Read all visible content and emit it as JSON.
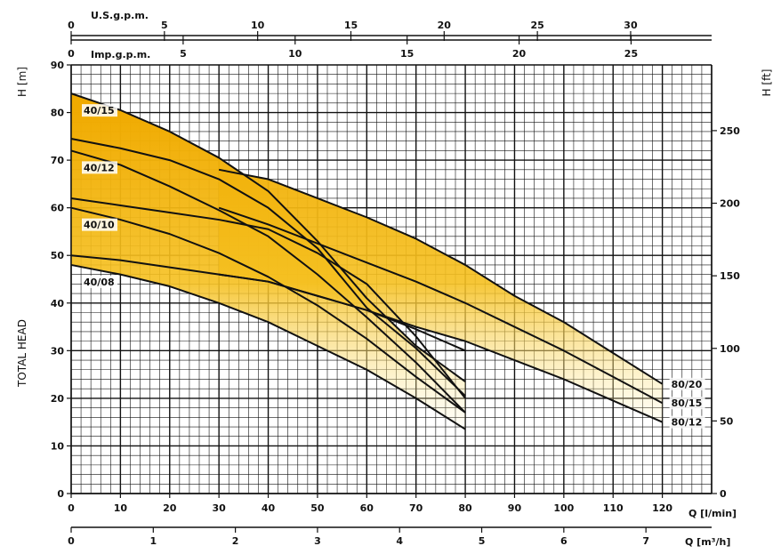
{
  "chart_data": {
    "type": "line",
    "left_axis_title": "TOTAL HEAD",
    "left_unit": "H [m]",
    "right_unit": "H [ft]",
    "bottom_unit_lmin": "Q [l/min]",
    "bottom_unit_m3h": "Q [m³/h]",
    "top_unit_us": "U.S.g.p.m.",
    "top_unit_imp": "Imp.g.p.m.",
    "xlim": [
      0,
      130
    ],
    "ylim": [
      0,
      90
    ],
    "y_ticks_m": [
      0,
      10,
      20,
      30,
      40,
      50,
      60,
      70,
      80,
      90
    ],
    "y_ticks_ft": [
      0,
      50,
      100,
      150,
      200,
      250
    ],
    "x_ticks_lmin": [
      0,
      10,
      20,
      30,
      40,
      50,
      60,
      70,
      80,
      90,
      100,
      110,
      120
    ],
    "x_ticks_m3h": [
      0,
      1,
      2,
      3,
      4,
      5,
      6,
      7
    ],
    "x_ticks_usgpm": [
      0,
      5,
      10,
      15,
      20,
      25,
      30
    ],
    "x_ticks_impgpm": [
      0,
      5,
      10,
      15,
      20,
      25
    ],
    "fill_color": "#f0b000",
    "series": [
      {
        "name": "40/15",
        "x": [
          0,
          10,
          20,
          30,
          40,
          50,
          60,
          70,
          80
        ],
        "y": [
          84,
          80.5,
          76,
          70.5,
          63.5,
          53,
          41,
          31,
          23.5
        ]
      },
      {
        "name": "",
        "x": [
          0,
          10,
          20,
          30,
          40,
          50,
          60,
          70,
          80
        ],
        "y": [
          74.5,
          72.5,
          70,
          66,
          60,
          51.5,
          39,
          30.5,
          20.5
        ]
      },
      {
        "name": "40/12",
        "x": [
          0,
          10,
          20,
          30,
          40,
          50,
          60,
          70,
          80
        ],
        "y": [
          72,
          69,
          64.5,
          59.5,
          54,
          46,
          37,
          27.5,
          17
        ]
      },
      {
        "name": "",
        "x": [
          0,
          10,
          20,
          30,
          40,
          50,
          60,
          70,
          80
        ],
        "y": [
          62,
          60.5,
          59,
          57.5,
          55.5,
          50.5,
          44,
          33,
          20
        ]
      },
      {
        "name": "40/10",
        "x": [
          0,
          10,
          20,
          30,
          40,
          50,
          60,
          70,
          80
        ],
        "y": [
          60,
          57.5,
          54.5,
          50.5,
          45.5,
          39.5,
          32.5,
          24.5,
          17
        ]
      },
      {
        "name": "",
        "x": [
          0,
          10,
          20,
          30,
          40,
          50,
          60,
          70,
          80
        ],
        "y": [
          50,
          49,
          47.5,
          46,
          44.5,
          41.5,
          38.5,
          34.5,
          30
        ]
      },
      {
        "name": "40/08",
        "x": [
          0,
          10,
          20,
          30,
          40,
          50,
          60,
          70,
          80
        ],
        "y": [
          48,
          46,
          43.5,
          40,
          36,
          31,
          26,
          20,
          13.5
        ]
      },
      {
        "name": "80/20",
        "x": [
          30,
          40,
          50,
          60,
          70,
          80,
          90,
          100,
          110,
          120
        ],
        "y": [
          68,
          66,
          62,
          58,
          53.5,
          48,
          41.5,
          36,
          29.5,
          23
        ]
      },
      {
        "name": "80/15",
        "x": [
          30,
          40,
          50,
          60,
          70,
          80,
          90,
          100,
          110,
          120
        ],
        "y": [
          60,
          56.5,
          52.5,
          48.5,
          44.5,
          40,
          35,
          30,
          24.5,
          19
        ]
      },
      {
        "name": "80/12",
        "x": [
          30,
          40,
          50,
          60,
          70,
          80,
          90,
          100,
          110,
          120
        ],
        "y": [
          46,
          44.5,
          41.5,
          38.5,
          35,
          32,
          28,
          24,
          19.5,
          15
        ]
      }
    ]
  }
}
